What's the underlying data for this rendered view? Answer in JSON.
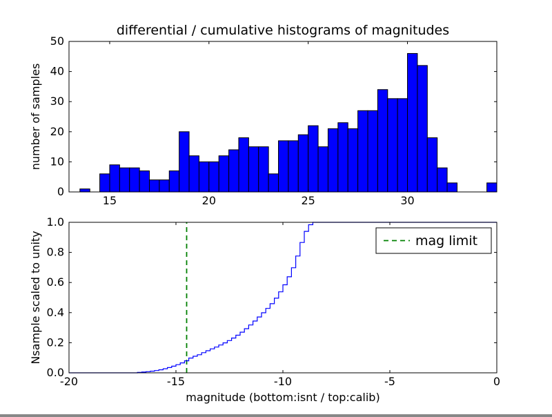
{
  "figure": {
    "background": "#ffffff",
    "frame_color": "#000000"
  },
  "chart_data": [
    {
      "type": "bar",
      "name": "differential-histogram",
      "title": "differential / cumulative histograms of magnitudes",
      "ylabel": "number of samples",
      "xlim": [
        12.95,
        34.5
      ],
      "ylim": [
        0,
        50
      ],
      "xticks": [
        15,
        20,
        25,
        30
      ],
      "xtick_labels": [
        "15",
        "20",
        "25",
        "30"
      ],
      "yticks": [
        0,
        10,
        20,
        30,
        40,
        50
      ],
      "ytick_labels": [
        "0",
        "10",
        "20",
        "30",
        "40",
        "50"
      ],
      "grid": false,
      "bin_start": 13.5,
      "bin_width": 0.5,
      "counts": [
        1,
        0,
        6,
        9,
        8,
        8,
        7,
        4,
        4,
        7,
        20,
        12,
        10,
        10,
        12,
        14,
        18,
        15,
        15,
        6,
        17,
        17,
        19,
        22,
        15,
        21,
        23,
        21,
        27,
        27,
        34,
        31,
        31,
        46,
        42,
        18,
        8,
        3,
        0,
        0,
        0,
        3
      ],
      "bar_color": "#0000ff",
      "bar_edge_color": "#000000"
    },
    {
      "type": "line",
      "name": "cumulative-histogram",
      "subtype": "step",
      "ylabel": "Nsample scaled to unity",
      "xlabel": "magnitude (bottom:isnt / top:calib)",
      "xlim": [
        -20,
        0
      ],
      "ylim": [
        0,
        1
      ],
      "xticks": [
        -20,
        -15,
        -10,
        -5,
        0
      ],
      "xtick_labels": [
        "-20",
        "-15",
        "-10",
        "-5",
        "0"
      ],
      "yticks": [
        0,
        0.2,
        0.4,
        0.6,
        0.8,
        1.0
      ],
      "ytick_labels": [
        "0.0",
        "0.2",
        "0.4",
        "0.6",
        "0.8",
        "1.0"
      ],
      "grid": false,
      "line_color": "#0000ff",
      "step_points": [
        [
          -20,
          0
        ],
        [
          -17,
          0
        ],
        [
          -16.8,
          0.003
        ],
        [
          -16.6,
          0.005
        ],
        [
          -16.4,
          0.008
        ],
        [
          -16.2,
          0.011
        ],
        [
          -16,
          0.015
        ],
        [
          -15.8,
          0.02
        ],
        [
          -15.6,
          0.027
        ],
        [
          -15.4,
          0.035
        ],
        [
          -15.2,
          0.044
        ],
        [
          -15,
          0.054
        ],
        [
          -14.8,
          0.066
        ],
        [
          -14.6,
          0.08
        ],
        [
          -14.4,
          0.098
        ],
        [
          -14.2,
          0.11
        ],
        [
          -14,
          0.12
        ],
        [
          -13.8,
          0.134
        ],
        [
          -13.6,
          0.147
        ],
        [
          -13.4,
          0.159
        ],
        [
          -13.2,
          0.171
        ],
        [
          -13,
          0.185
        ],
        [
          -12.8,
          0.199
        ],
        [
          -12.6,
          0.214
        ],
        [
          -12.4,
          0.231
        ],
        [
          -12.2,
          0.25
        ],
        [
          -12,
          0.27
        ],
        [
          -11.8,
          0.293
        ],
        [
          -11.6,
          0.318
        ],
        [
          -11.4,
          0.344
        ],
        [
          -11.2,
          0.371
        ],
        [
          -11,
          0.399
        ],
        [
          -10.8,
          0.428
        ],
        [
          -10.6,
          0.459
        ],
        [
          -10.4,
          0.496
        ],
        [
          -10.2,
          0.538
        ],
        [
          -10,
          0.585
        ],
        [
          -9.8,
          0.638
        ],
        [
          -9.6,
          0.698
        ],
        [
          -9.4,
          0.776
        ],
        [
          -9.2,
          0.866
        ],
        [
          -9,
          0.94
        ],
        [
          -8.8,
          0.984
        ],
        [
          -8.6,
          1.0
        ],
        [
          0,
          1.0
        ]
      ],
      "mag_limit": {
        "x": -14.5,
        "color": "#008000",
        "style": "dashed",
        "label": "mag limit"
      },
      "legend": {
        "position": "upper right",
        "entries": [
          {
            "label": "mag limit",
            "color": "#008000",
            "style": "dashed"
          }
        ]
      }
    }
  ]
}
